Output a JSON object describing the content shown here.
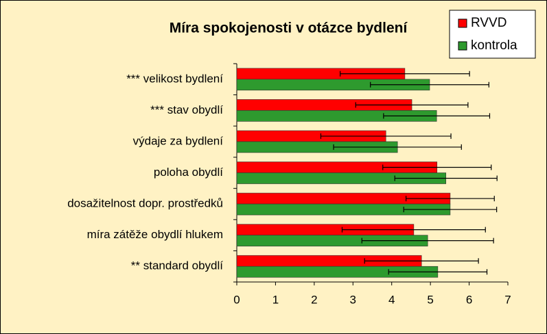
{
  "chart_data": {
    "type": "hbar",
    "title": "Míra spokojenosti v otázce bydlení",
    "categories": [
      "*** velikost bydlení",
      "*** stav obydlí",
      "výdaje za bydlení",
      "poloha obydlí",
      "dosažitelnost dopr. prostředků",
      "míra zátěže obydlí hlukem",
      "** standard obydlí"
    ],
    "series": [
      {
        "name": "RVVD",
        "color": "#ff0000",
        "values": [
          4.34,
          4.52,
          3.85,
          5.17,
          5.51,
          4.57,
          4.77
        ],
        "errors": [
          1.67,
          1.45,
          1.68,
          1.4,
          1.14,
          1.85,
          1.47
        ]
      },
      {
        "name": "kontrola",
        "color": "#2e9a2e",
        "values": [
          4.98,
          5.16,
          4.15,
          5.4,
          5.51,
          4.93,
          5.19
        ],
        "errors": [
          1.53,
          1.37,
          1.65,
          1.32,
          1.2,
          1.7,
          1.27
        ]
      }
    ],
    "xlim": [
      0,
      7
    ],
    "xticks": [
      0,
      1,
      2,
      3,
      4,
      5,
      6,
      7
    ]
  }
}
